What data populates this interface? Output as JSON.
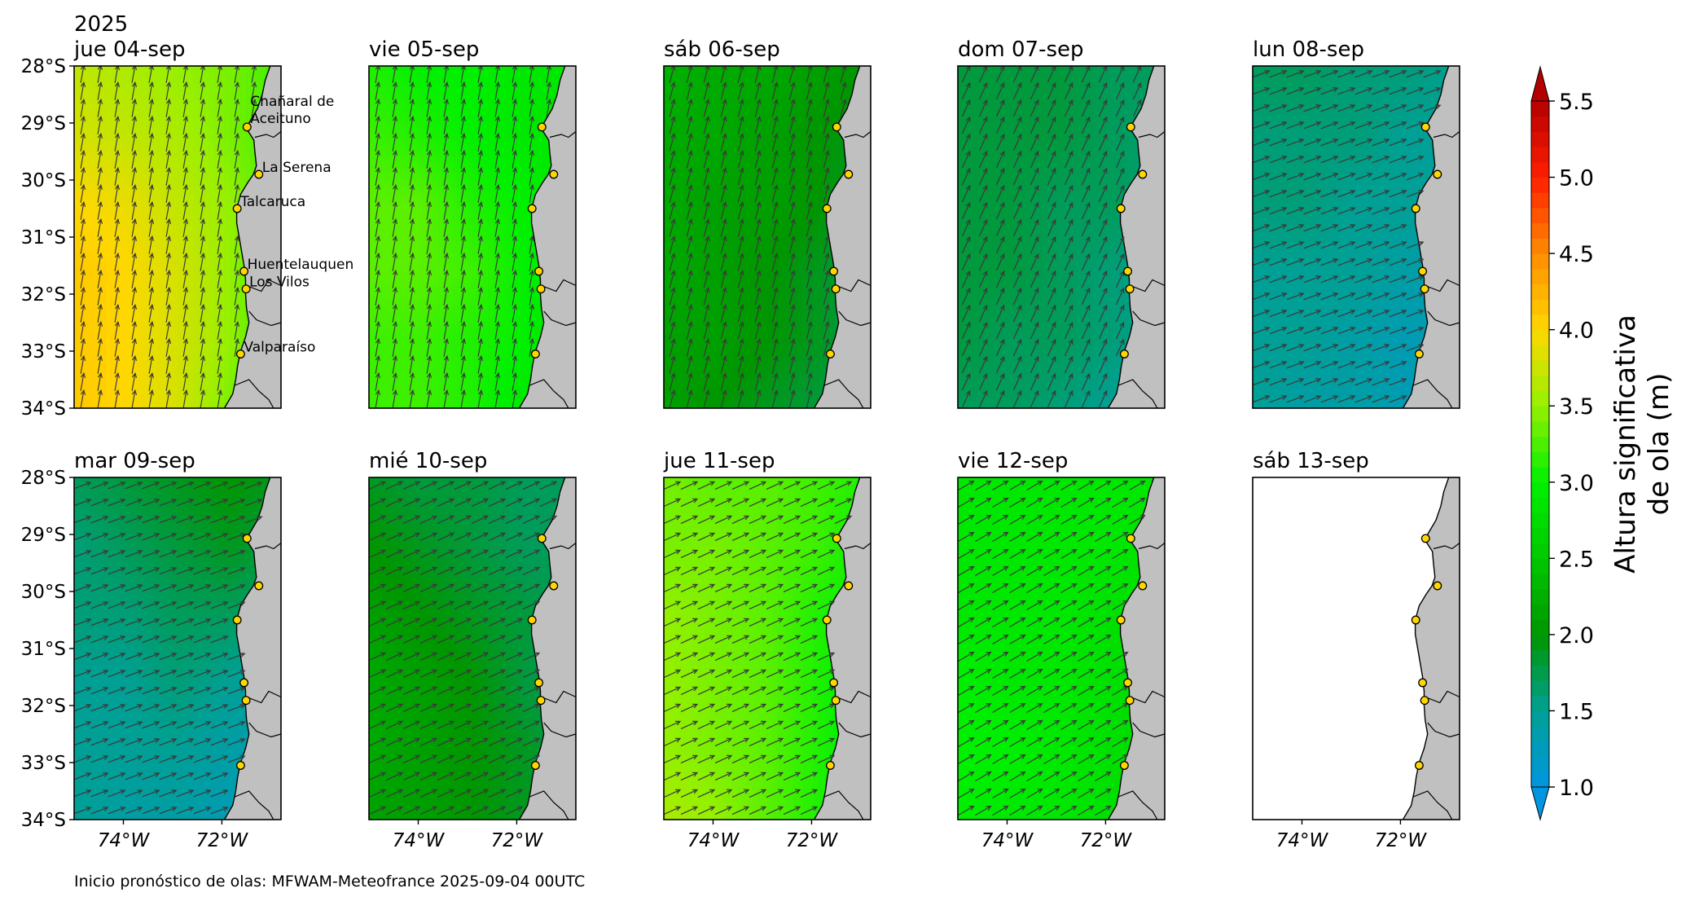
{
  "chart_data": {
    "type": "heatmap",
    "year_label": "2025",
    "variable_label_line1": "Altura significativa",
    "variable_label_line2": "de ola (m)",
    "footer": "Inicio pronóstico de olas: MFWAM-Meteofrance 2025-09-04 00UTC",
    "x_tick_labels": [
      "74°W",
      "72°W"
    ],
    "x_ticks_deg": [
      -74,
      -72
    ],
    "y_tick_labels": [
      "28°S",
      "29°S",
      "30°S",
      "31°S",
      "32°S",
      "33°S",
      "34°S"
    ],
    "y_ticks_deg": [
      -28,
      -29,
      -30,
      -31,
      -32,
      -33,
      -34
    ],
    "lon_range": [
      -75.0,
      -70.8
    ],
    "lat_range": [
      -34,
      -28
    ],
    "colorbar": {
      "ticks": [
        "1.0",
        "1.5",
        "2.0",
        "2.5",
        "3.0",
        "3.5",
        "4.0",
        "4.5",
        "5.0",
        "5.5"
      ],
      "range": [
        1.0,
        5.5
      ],
      "extend": "both"
    },
    "colors": {
      "land": "#c0c0c0",
      "ocean_nodata": "#ffffff",
      "arrow": "#3a3a3a",
      "marker_fill": "#ffd700"
    },
    "locations": [
      {
        "name": "Chañaral de Aceituno",
        "lat": -29.07,
        "lon": -71.49
      },
      {
        "name": "La Serena",
        "lat": -29.9,
        "lon": -71.25
      },
      {
        "name": "Talcaruca",
        "lat": -30.5,
        "lon": -71.69
      },
      {
        "name": "Huentelauquen",
        "lat": -31.6,
        "lon": -71.55
      },
      {
        "name": "Los Vilos",
        "lat": -31.91,
        "lon": -71.51
      },
      {
        "name": "Valparaíso",
        "lat": -33.05,
        "lon": -71.62
      }
    ],
    "location_labels_panel": 0,
    "panels": [
      {
        "title": "jue 04-sep",
        "hs_min": 3.2,
        "hs_max": 4.1,
        "wave_dir_deg": 190,
        "grid": [
          [
            3.7,
            3.6,
            3.5,
            3.4,
            3.2
          ],
          [
            3.8,
            3.7,
            3.6,
            3.4,
            3.2
          ],
          [
            4.0,
            3.9,
            3.7,
            3.5,
            3.2
          ],
          [
            4.1,
            4.0,
            3.8,
            3.5,
            3.1
          ],
          [
            4.1,
            4.0,
            3.8,
            3.5,
            3.1
          ],
          [
            4.1,
            4.0,
            3.8,
            3.4,
            3.0
          ]
        ]
      },
      {
        "title": "vie 05-sep",
        "hs_min": 2.8,
        "hs_max": 3.4,
        "wave_dir_deg": 190,
        "grid": [
          [
            3.1,
            3.0,
            3.0,
            2.9,
            2.9
          ],
          [
            3.2,
            3.1,
            3.0,
            2.9,
            2.9
          ],
          [
            3.3,
            3.3,
            3.1,
            3.0,
            2.9
          ],
          [
            3.3,
            3.3,
            3.2,
            3.0,
            2.9
          ],
          [
            3.2,
            3.2,
            3.1,
            3.0,
            2.8
          ],
          [
            3.2,
            3.2,
            3.1,
            2.9,
            2.8
          ]
        ]
      },
      {
        "title": "sáb 06-sep",
        "hs_min": 1.6,
        "hs_max": 2.3,
        "wave_dir_deg": 195,
        "grid": [
          [
            2.3,
            2.2,
            2.2,
            2.1,
            2.0
          ],
          [
            2.2,
            2.2,
            2.1,
            2.0,
            1.9
          ],
          [
            2.2,
            2.1,
            2.1,
            2.0,
            1.8
          ],
          [
            2.2,
            2.1,
            2.0,
            1.9,
            1.7
          ],
          [
            2.1,
            2.1,
            2.0,
            1.9,
            1.7
          ],
          [
            2.1,
            2.0,
            1.9,
            1.8,
            1.6
          ]
        ]
      },
      {
        "title": "dom 07-sep",
        "hs_min": 1.4,
        "hs_max": 1.9,
        "wave_dir_deg": 205,
        "grid": [
          [
            1.8,
            1.8,
            1.8,
            1.7,
            1.7
          ],
          [
            1.8,
            1.8,
            1.8,
            1.7,
            1.6
          ],
          [
            1.8,
            1.8,
            1.7,
            1.7,
            1.6
          ],
          [
            1.8,
            1.8,
            1.7,
            1.6,
            1.5
          ],
          [
            1.8,
            1.7,
            1.7,
            1.6,
            1.5
          ],
          [
            1.7,
            1.7,
            1.6,
            1.5,
            1.4
          ]
        ]
      },
      {
        "title": "lun 08-sep",
        "hs_min": 1.2,
        "hs_max": 1.7,
        "wave_dir_deg": 250,
        "grid": [
          [
            1.7,
            1.7,
            1.6,
            1.6,
            1.5
          ],
          [
            1.6,
            1.6,
            1.6,
            1.5,
            1.5
          ],
          [
            1.6,
            1.6,
            1.5,
            1.5,
            1.4
          ],
          [
            1.5,
            1.5,
            1.5,
            1.4,
            1.3
          ],
          [
            1.5,
            1.5,
            1.4,
            1.3,
            1.3
          ],
          [
            1.5,
            1.4,
            1.4,
            1.3,
            1.2
          ]
        ]
      },
      {
        "title": "mar 09-sep",
        "hs_min": 1.3,
        "hs_max": 2.0,
        "wave_dir_deg": 250,
        "grid": [
          [
            1.7,
            1.8,
            1.9,
            2.0,
            1.9
          ],
          [
            1.6,
            1.7,
            1.8,
            1.9,
            1.8
          ],
          [
            1.6,
            1.6,
            1.7,
            1.7,
            1.6
          ],
          [
            1.5,
            1.5,
            1.6,
            1.5,
            1.4
          ],
          [
            1.5,
            1.5,
            1.5,
            1.4,
            1.3
          ],
          [
            1.5,
            1.4,
            1.4,
            1.3,
            1.3
          ]
        ]
      },
      {
        "title": "mié 10-sep",
        "hs_min": 1.6,
        "hs_max": 2.2,
        "wave_dir_deg": 245,
        "grid": [
          [
            1.9,
            1.8,
            1.8,
            1.7,
            1.7
          ],
          [
            2.0,
            1.9,
            1.8,
            1.7,
            1.7
          ],
          [
            2.1,
            2.0,
            1.9,
            1.8,
            1.7
          ],
          [
            2.2,
            2.1,
            2.0,
            1.8,
            1.7
          ],
          [
            2.2,
            2.1,
            2.0,
            1.9,
            1.7
          ],
          [
            2.1,
            2.1,
            2.0,
            1.9,
            1.8
          ]
        ]
      },
      {
        "title": "jue 11-sep",
        "hs_min": 2.9,
        "hs_max": 3.6,
        "wave_dir_deg": 245,
        "grid": [
          [
            3.4,
            3.3,
            3.3,
            3.2,
            3.1
          ],
          [
            3.4,
            3.4,
            3.3,
            3.2,
            3.0
          ],
          [
            3.5,
            3.4,
            3.3,
            3.1,
            3.0
          ],
          [
            3.5,
            3.4,
            3.3,
            3.1,
            2.9
          ],
          [
            3.5,
            3.4,
            3.3,
            3.1,
            2.9
          ],
          [
            3.6,
            3.5,
            3.3,
            3.1,
            2.9
          ]
        ]
      },
      {
        "title": "vie 12-sep",
        "hs_min": 2.6,
        "hs_max": 3.0,
        "wave_dir_deg": 240,
        "grid": [
          [
            2.9,
            2.9,
            2.9,
            2.9,
            2.9
          ],
          [
            2.9,
            2.9,
            2.9,
            2.9,
            2.8
          ],
          [
            2.9,
            2.9,
            2.9,
            2.8,
            2.8
          ],
          [
            3.0,
            2.9,
            2.9,
            2.8,
            2.7
          ],
          [
            3.0,
            3.0,
            2.9,
            2.8,
            2.7
          ],
          [
            3.0,
            2.9,
            2.9,
            2.8,
            2.6
          ]
        ]
      },
      {
        "title": "sáb 13-sep",
        "hs_min": null,
        "hs_max": null,
        "wave_dir_deg": null,
        "grid": null
      }
    ]
  }
}
